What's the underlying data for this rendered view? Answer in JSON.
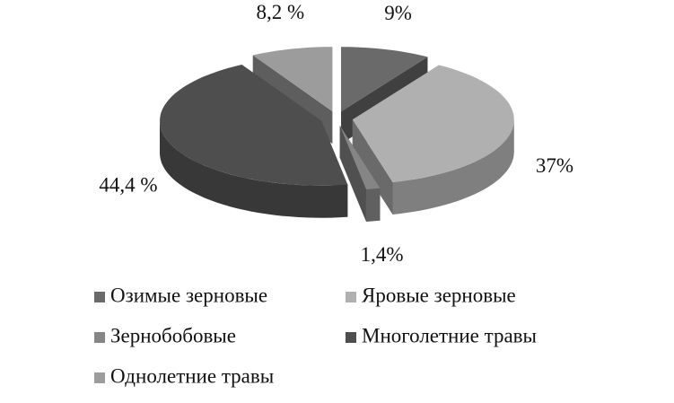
{
  "chart_data": {
    "type": "pie3d",
    "categories": [
      "Озимые зерновые",
      "Яровые зерновые",
      "Зернобобовые",
      "Многолетние травы",
      "Однолетние травы"
    ],
    "values": [
      9,
      37,
      1.4,
      44.4,
      8.2
    ],
    "value_labels": [
      "9%",
      "37%",
      "1,4%",
      "44,4 %",
      "8,2 %"
    ],
    "colors": [
      "#6a6a6a",
      "#b0b0b0",
      "#858585",
      "#4e4e4e",
      "#9c9c9c"
    ]
  }
}
